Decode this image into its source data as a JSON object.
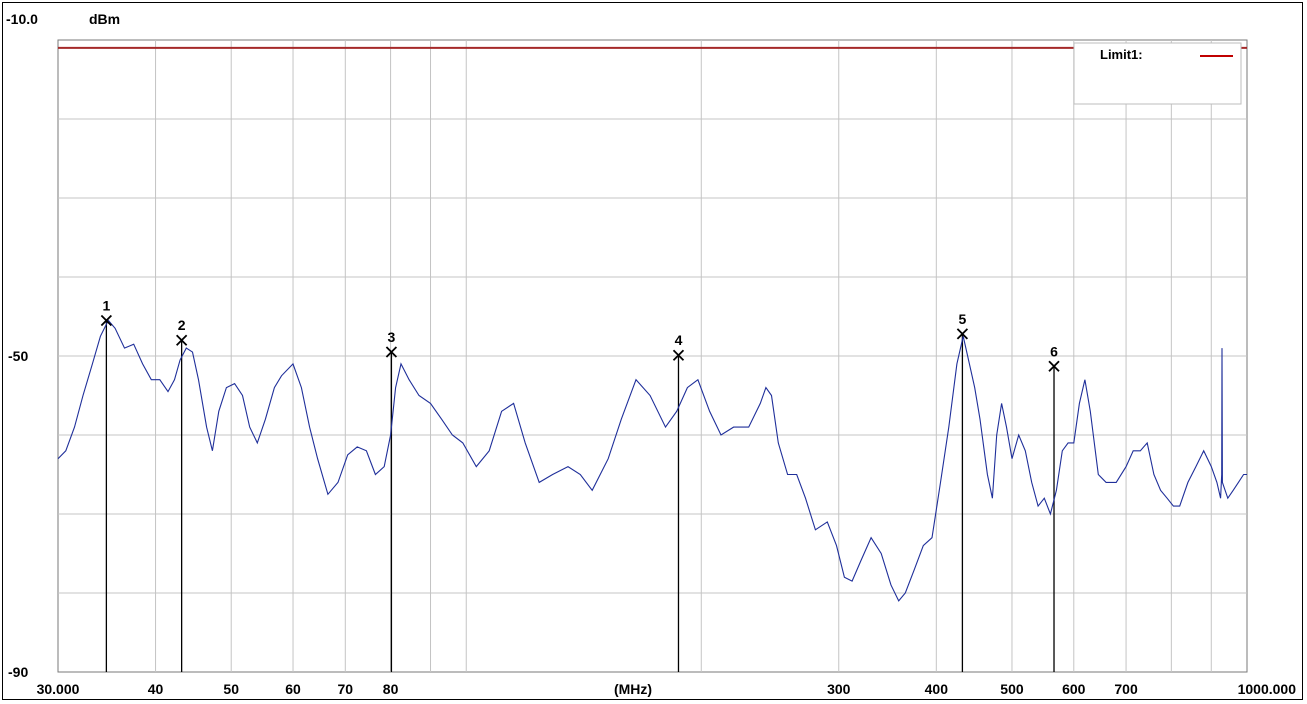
{
  "chart_data": {
    "type": "line",
    "y_top_label": "-10.0",
    "y_unit": "dBm",
    "ylim": [
      -90,
      -10
    ],
    "xlim": [
      30,
      1000
    ],
    "x_scale": "log",
    "y_tick_labels": [
      {
        "value": -50,
        "label": "-50"
      },
      {
        "value": -90,
        "label": "-90"
      }
    ],
    "x_tick_labels": [
      {
        "value": 30,
        "label": "30.000"
      },
      {
        "value": 40,
        "label": "40"
      },
      {
        "value": 50,
        "label": "50"
      },
      {
        "value": 60,
        "label": "60"
      },
      {
        "value": 70,
        "label": "70"
      },
      {
        "value": 80,
        "label": "80"
      },
      {
        "value": 300,
        "label": "300"
      },
      {
        "value": 400,
        "label": "400"
      },
      {
        "value": 500,
        "label": "500"
      },
      {
        "value": 600,
        "label": "600"
      },
      {
        "value": 700,
        "label": "700"
      },
      {
        "value": 1000,
        "label": "1000.000"
      }
    ],
    "x_unit_label": "(MHz)",
    "x_gridlines": [
      40,
      50,
      60,
      70,
      80,
      90,
      100,
      200,
      300,
      400,
      500,
      600,
      700,
      800,
      900
    ],
    "y_gridlines": [
      -20,
      -30,
      -40,
      -50,
      -60,
      -70,
      -80
    ],
    "grid": true,
    "legend": {
      "label": "Limit1:",
      "color": "#c00000",
      "position": "top-right"
    },
    "limit_line": {
      "name": "Limit1",
      "value": -11,
      "color": "#a52a2a"
    },
    "trace_color": "#1f2f9a",
    "trace_points": [
      [
        30,
        -63
      ],
      [
        30.7,
        -62
      ],
      [
        31.5,
        -59
      ],
      [
        32.3,
        -55
      ],
      [
        33.2,
        -51
      ],
      [
        34,
        -47.5
      ],
      [
        34.8,
        -45.5
      ],
      [
        35.5,
        -46.5
      ],
      [
        36.5,
        -49
      ],
      [
        37.5,
        -48.5
      ],
      [
        38.5,
        -51
      ],
      [
        39.5,
        -53
      ],
      [
        40.5,
        -53
      ],
      [
        41.5,
        -54.5
      ],
      [
        42.3,
        -53
      ],
      [
        43,
        -50.5
      ],
      [
        43.8,
        -49
      ],
      [
        44.6,
        -49.5
      ],
      [
        45.4,
        -53
      ],
      [
        46.5,
        -59
      ],
      [
        47.3,
        -62
      ],
      [
        48.2,
        -57
      ],
      [
        49.3,
        -54
      ],
      [
        50.5,
        -53.5
      ],
      [
        51.7,
        -55
      ],
      [
        52.8,
        -59
      ],
      [
        54,
        -61
      ],
      [
        55.3,
        -58
      ],
      [
        56.8,
        -54
      ],
      [
        58,
        -52.5
      ],
      [
        60,
        -51
      ],
      [
        61.5,
        -54
      ],
      [
        63,
        -59
      ],
      [
        64.5,
        -63
      ],
      [
        66.5,
        -67.5
      ],
      [
        68.5,
        -66
      ],
      [
        70.5,
        -62.5
      ],
      [
        72.5,
        -61.5
      ],
      [
        74.5,
        -62
      ],
      [
        76.5,
        -65
      ],
      [
        78.5,
        -64
      ],
      [
        80,
        -60
      ],
      [
        81.2,
        -54
      ],
      [
        82.5,
        -51
      ],
      [
        84.5,
        -53
      ],
      [
        87,
        -55
      ],
      [
        90,
        -56
      ],
      [
        93,
        -58
      ],
      [
        96,
        -60
      ],
      [
        99,
        -61
      ],
      [
        103,
        -64
      ],
      [
        107,
        -62
      ],
      [
        111,
        -57
      ],
      [
        115,
        -56
      ],
      [
        119,
        -61
      ],
      [
        124,
        -66
      ],
      [
        129,
        -65
      ],
      [
        135,
        -64
      ],
      [
        140,
        -65
      ],
      [
        145,
        -67
      ],
      [
        152,
        -63
      ],
      [
        158,
        -58
      ],
      [
        165,
        -53
      ],
      [
        172,
        -55
      ],
      [
        180,
        -59
      ],
      [
        186,
        -57
      ],
      [
        192,
        -54
      ],
      [
        198,
        -53
      ],
      [
        205,
        -57
      ],
      [
        212,
        -60
      ],
      [
        220,
        -59
      ],
      [
        230,
        -59
      ],
      [
        238,
        -56
      ],
      [
        242,
        -54
      ],
      [
        246,
        -55
      ],
      [
        251,
        -61
      ],
      [
        258,
        -65
      ],
      [
        265,
        -65
      ],
      [
        272,
        -68
      ],
      [
        280,
        -72
      ],
      [
        290,
        -71
      ],
      [
        298,
        -74
      ],
      [
        305,
        -78
      ],
      [
        312,
        -78.5
      ],
      [
        320,
        -76
      ],
      [
        330,
        -73
      ],
      [
        340,
        -75
      ],
      [
        350,
        -79
      ],
      [
        358,
        -81
      ],
      [
        365,
        -80
      ],
      [
        375,
        -77
      ],
      [
        385,
        -74
      ],
      [
        395,
        -73
      ],
      [
        405,
        -66
      ],
      [
        415,
        -59
      ],
      [
        425,
        -51
      ],
      [
        433,
        -47.5
      ],
      [
        441,
        -51
      ],
      [
        448,
        -54
      ],
      [
        455,
        -58
      ],
      [
        465,
        -65
      ],
      [
        472,
        -68
      ],
      [
        478,
        -60
      ],
      [
        485,
        -56
      ],
      [
        492,
        -59
      ],
      [
        500,
        -63
      ],
      [
        510,
        -60
      ],
      [
        520,
        -62
      ],
      [
        530,
        -66
      ],
      [
        540,
        -69
      ],
      [
        550,
        -68
      ],
      [
        560,
        -70
      ],
      [
        570,
        -67
      ],
      [
        580,
        -62
      ],
      [
        590,
        -61
      ],
      [
        600,
        -61
      ],
      [
        610,
        -56
      ],
      [
        620,
        -53
      ],
      [
        630,
        -57
      ],
      [
        645,
        -65
      ],
      [
        660,
        -66
      ],
      [
        680,
        -66
      ],
      [
        700,
        -64
      ],
      [
        715,
        -62
      ],
      [
        730,
        -62
      ],
      [
        745,
        -61
      ],
      [
        760,
        -65
      ],
      [
        775,
        -67
      ],
      [
        790,
        -68
      ],
      [
        805,
        -69
      ],
      [
        820,
        -69
      ],
      [
        840,
        -66
      ],
      [
        860,
        -64
      ],
      [
        880,
        -62
      ],
      [
        900,
        -64
      ],
      [
        915,
        -66
      ],
      [
        925,
        -68
      ],
      [
        928,
        -65
      ],
      [
        929,
        -49
      ],
      [
        930,
        -66
      ],
      [
        945,
        -68
      ],
      [
        960,
        -67
      ],
      [
        975,
        -66
      ],
      [
        990,
        -65
      ],
      [
        1000,
        -65
      ]
    ],
    "markers": [
      {
        "label": "1",
        "x": 34.6,
        "y": -45.5
      },
      {
        "label": "2",
        "x": 43.2,
        "y": -48
      },
      {
        "label": "3",
        "x": 80.2,
        "y": -49.5
      },
      {
        "label": "4",
        "x": 187,
        "y": -49.9
      },
      {
        "label": "5",
        "x": 432,
        "y": -47.2
      },
      {
        "label": "6",
        "x": 566,
        "y": -51.3
      }
    ]
  }
}
